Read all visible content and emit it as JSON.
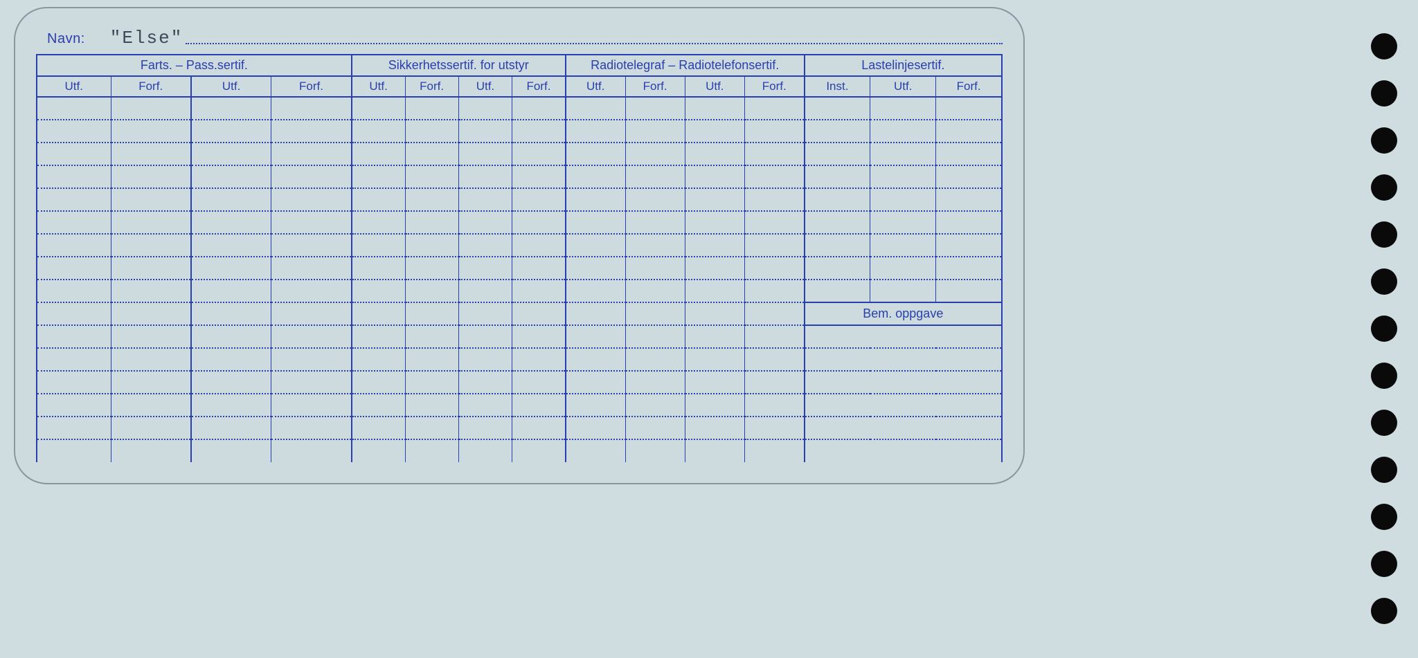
{
  "card": {
    "navn_label": "Navn:",
    "navn_value": "\"Else\"",
    "groups": [
      {
        "title": "Farts. – Pass.sertif.",
        "cols": [
          "Utf.",
          "Forf.",
          "Utf.",
          "Forf."
        ]
      },
      {
        "title": "Sikkerhetssertif. for utstyr",
        "cols": [
          "Utf.",
          "Forf.",
          "Utf.",
          "Forf."
        ]
      },
      {
        "title": "Radiotelegraf – Radiotelefonsertif.",
        "cols": [
          "Utf.",
          "Forf.",
          "Utf.",
          "Forf."
        ]
      },
      {
        "title": "Lastelinjesertif.",
        "cols": [
          "Inst.",
          "Utf.",
          "Forf."
        ]
      }
    ],
    "bem_label": "Bem. oppgave",
    "row_count_upper": 9,
    "row_count_lower": 6,
    "colors": {
      "ink": "#2a3fae",
      "paper": "#cddade",
      "background": "#d0dde0",
      "card_border": "#8896a0",
      "typed": "#3a4a58",
      "hole": "#0a0a0a"
    }
  },
  "holes": {
    "count": 13
  }
}
